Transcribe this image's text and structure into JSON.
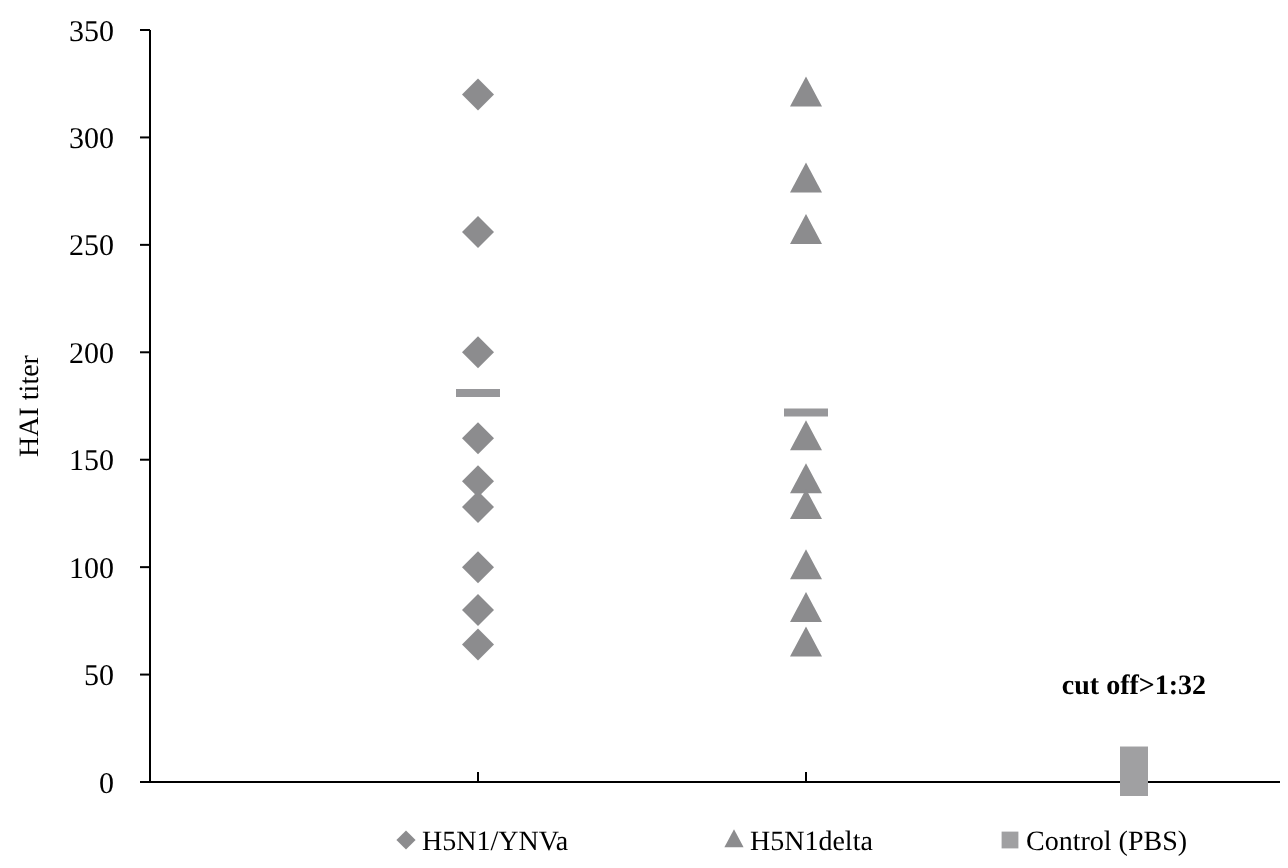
{
  "chart_data": {
    "type": "scatter",
    "ylabel": "HAI titer",
    "categories": [
      null,
      null,
      null
    ],
    "ylim": [
      0,
      350
    ],
    "yticks": [
      0,
      50,
      100,
      150,
      200,
      250,
      300,
      350
    ],
    "grid": false,
    "legend": "bottom",
    "series": [
      {
        "name": "H5N1/YNVa",
        "color": "#8c8c8e",
        "marker": "diamond",
        "values": [
          320,
          null,
          null
        ]
      },
      {
        "color": "#8c8c8e",
        "marker": "diamond",
        "values": [
          256,
          null,
          null
        ]
      },
      {
        "color": "#8c8c8e",
        "marker": "diamond",
        "values": [
          200,
          null,
          null
        ]
      },
      {
        "color": "#8c8c8e",
        "marker": "diamond",
        "values": [
          160,
          null,
          null
        ]
      },
      {
        "color": "#8c8c8e",
        "marker": "diamond",
        "values": [
          140,
          null,
          null
        ]
      },
      {
        "color": "#8c8c8e",
        "marker": "diamond",
        "values": [
          128,
          null,
          null
        ]
      },
      {
        "color": "#8c8c8e",
        "marker": "diamond",
        "values": [
          100,
          null,
          null
        ]
      },
      {
        "color": "#8c8c8e",
        "marker": "diamond",
        "values": [
          80,
          null,
          null
        ]
      },
      {
        "color": "#8c8c8e",
        "marker": "diamond",
        "values": [
          64,
          null,
          null
        ]
      },
      {
        "name": "H5N1delta",
        "color": "#8c8c8e",
        "marker": "triangle",
        "values": [
          null,
          320,
          null
        ]
      },
      {
        "color": "#8c8c8e",
        "marker": "triangle",
        "values": [
          null,
          280,
          null
        ]
      },
      {
        "color": "#8c8c8e",
        "marker": "triangle",
        "values": [
          null,
          256,
          null
        ]
      },
      {
        "color": "#8c8c8e",
        "marker": "triangle",
        "values": [
          null,
          160,
          null
        ]
      },
      {
        "color": "#8c8c8e",
        "marker": "triangle",
        "values": [
          null,
          140,
          null
        ]
      },
      {
        "color": "#8c8c8e",
        "marker": "triangle",
        "values": [
          null,
          128,
          null
        ]
      },
      {
        "color": "#8c8c8e",
        "marker": "triangle",
        "values": [
          null,
          100,
          null
        ]
      },
      {
        "color": "#8c8c8e",
        "marker": "triangle",
        "values": [
          null,
          80,
          null
        ]
      },
      {
        "color": "#8c8c8e",
        "marker": "triangle",
        "values": [
          null,
          64,
          null
        ]
      },
      {
        "name": "Control (PBS)",
        "color": "#a0a0a2",
        "marker": "square",
        "values": [
          null,
          null,
          10
        ]
      },
      {
        "color": "#a0a0a2",
        "marker": "square",
        "values": [
          null,
          null,
          0
        ]
      },
      {
        "type": "line",
        "color": "#97979a",
        "marker": "none",
        "values": [
          181,
          172,
          null
        ]
      }
    ],
    "annotations": [
      "cut off>1:32"
    ]
  }
}
